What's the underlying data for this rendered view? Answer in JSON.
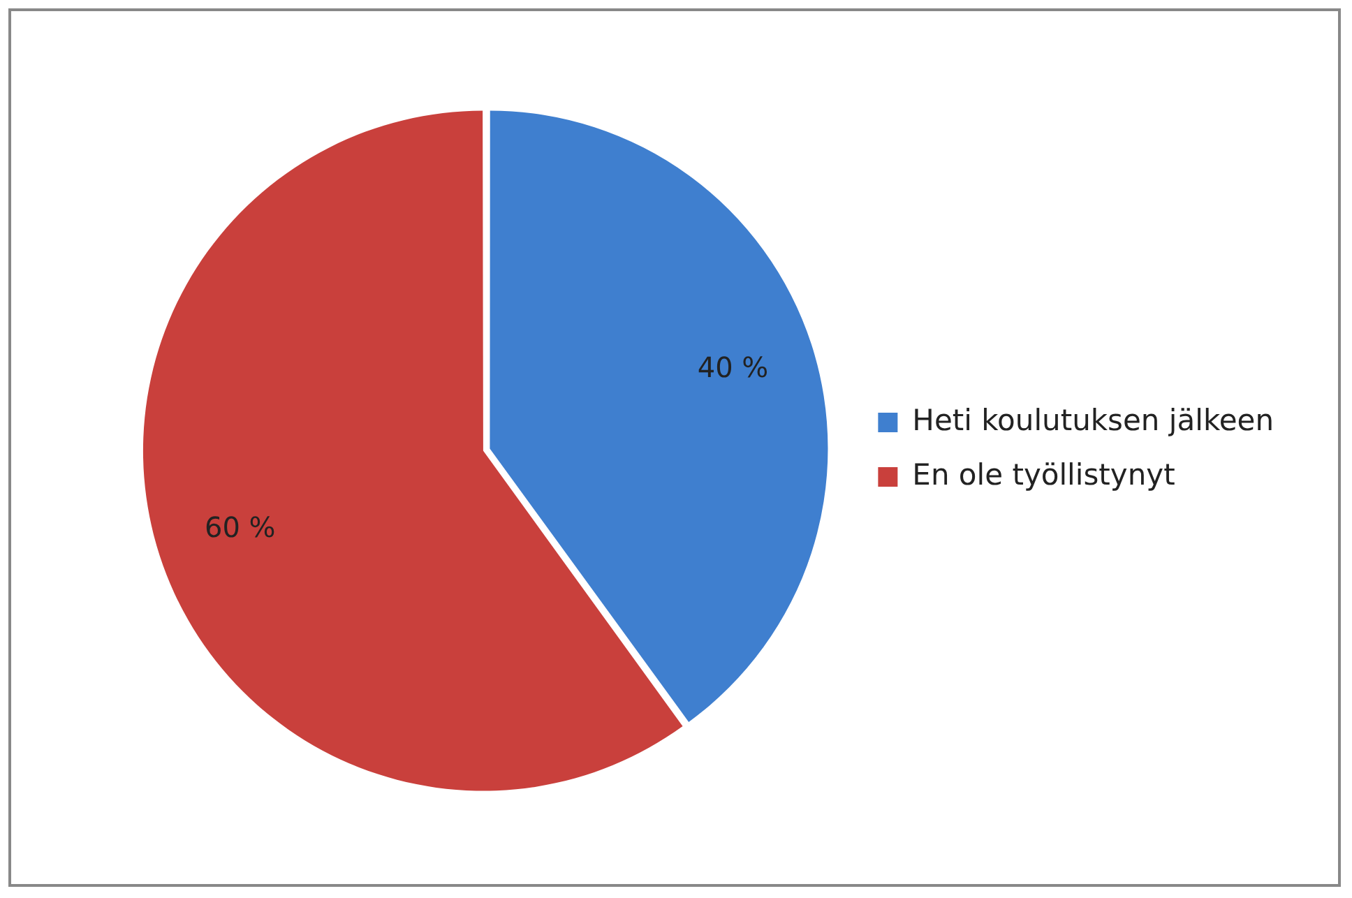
{
  "chart_data": {
    "type": "pie",
    "categories": [
      "Heti koulutuksen jälkeen",
      "En ole työllistynyt"
    ],
    "values": [
      40,
      60
    ],
    "colors": [
      "#3f7fcf",
      "#c9403c"
    ],
    "value_labels": [
      "40 %",
      "60 %"
    ],
    "legend": "right"
  }
}
